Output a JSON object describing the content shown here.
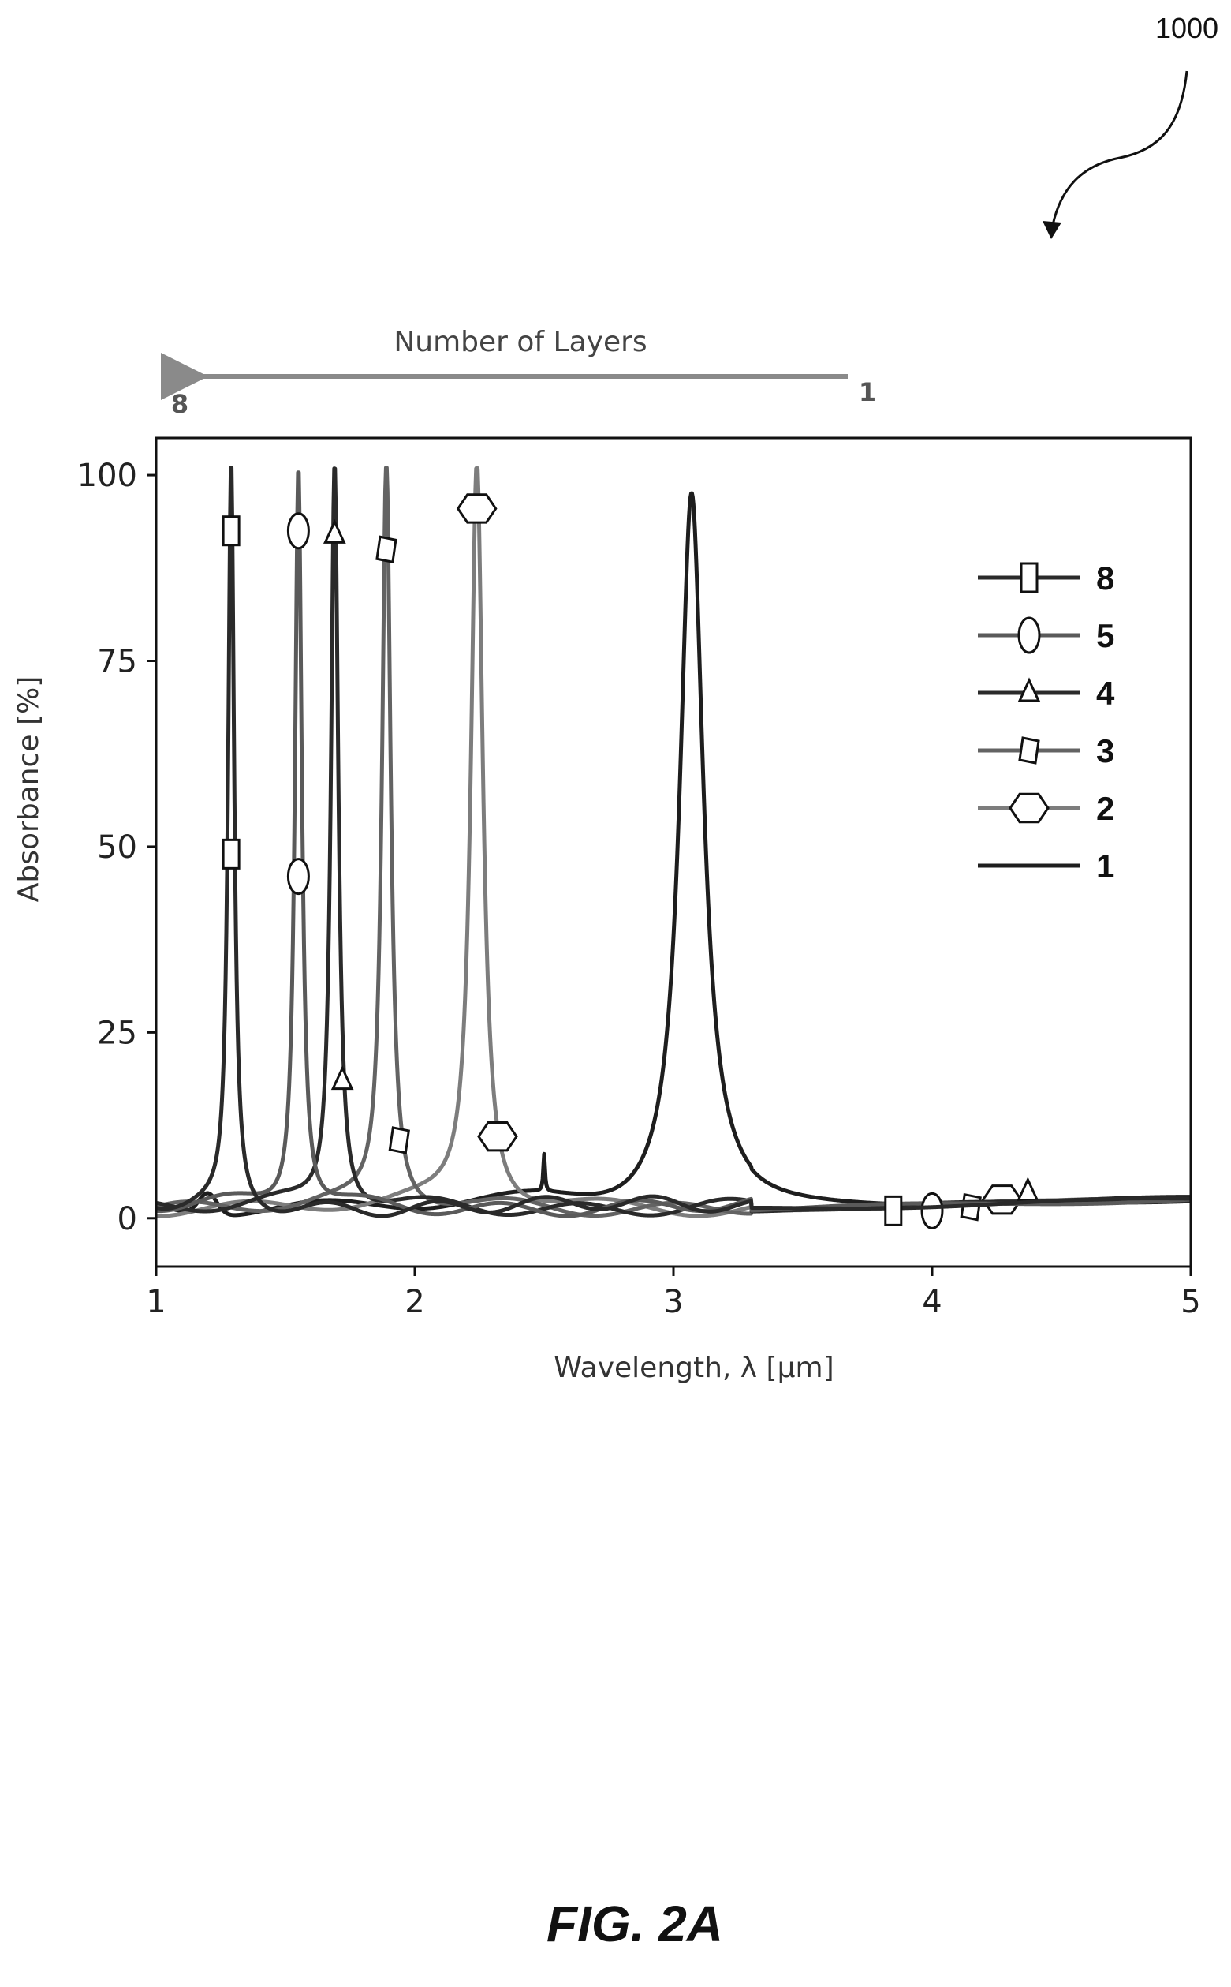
{
  "figure_ref": "1000",
  "caption": "FIG. 2A",
  "annotation": {
    "label": "Number of Layers",
    "left_end": "8",
    "right_end": "1",
    "arrow_color": "#8a8a8a"
  },
  "chart_data": {
    "type": "line",
    "xlabel": "Wavelength, λ [μm]",
    "ylabel": "Absorbance [%]",
    "xlim": [
      1,
      5
    ],
    "ylim": [
      -6.5,
      105
    ],
    "xticks": [
      "1",
      "2",
      "3",
      "4",
      "5"
    ],
    "yticks": [
      "0",
      "25",
      "50",
      "75",
      "100"
    ],
    "grid": false,
    "legend_position": "top-right",
    "series": [
      {
        "name": "8",
        "marker": "square",
        "color": "#2a2a2a",
        "peak_x": 1.29,
        "peak_y": 100,
        "width": 0.014,
        "marker_points": [
          [
            1.29,
            92.5
          ],
          [
            1.29,
            49
          ],
          [
            3.85,
            1
          ]
        ]
      },
      {
        "name": "5",
        "marker": "ellipse",
        "color": "#5a5a5a",
        "peak_x": 1.55,
        "peak_y": 100,
        "width": 0.016,
        "marker_points": [
          [
            1.55,
            92.5
          ],
          [
            1.55,
            46
          ],
          [
            4.0,
            1
          ]
        ]
      },
      {
        "name": "4",
        "marker": "triangle",
        "color": "#2a2a2a",
        "peak_x": 1.69,
        "peak_y": 100,
        "width": 0.017,
        "marker_points": [
          [
            1.69,
            92
          ],
          [
            1.72,
            18.5
          ],
          [
            4.37,
            3.5
          ]
        ]
      },
      {
        "name": "3",
        "marker": "parallelogram",
        "color": "#636363",
        "peak_x": 1.89,
        "peak_y": 100,
        "width": 0.02,
        "marker_points": [
          [
            1.89,
            90
          ],
          [
            1.94,
            10.5
          ],
          [
            4.15,
            1.5
          ]
        ]
      },
      {
        "name": "2",
        "marker": "hexagon",
        "color": "#7d7d7d",
        "peak_x": 2.24,
        "peak_y": 100,
        "width": 0.028,
        "marker_points": [
          [
            2.24,
            95.5
          ],
          [
            2.32,
            11
          ],
          [
            4.27,
            2.5
          ]
        ]
      },
      {
        "name": "1",
        "marker": "none",
        "color": "#1e1e1e",
        "peak_x": 3.07,
        "peak_y": 96,
        "width": 0.055,
        "marker_points": []
      }
    ]
  }
}
